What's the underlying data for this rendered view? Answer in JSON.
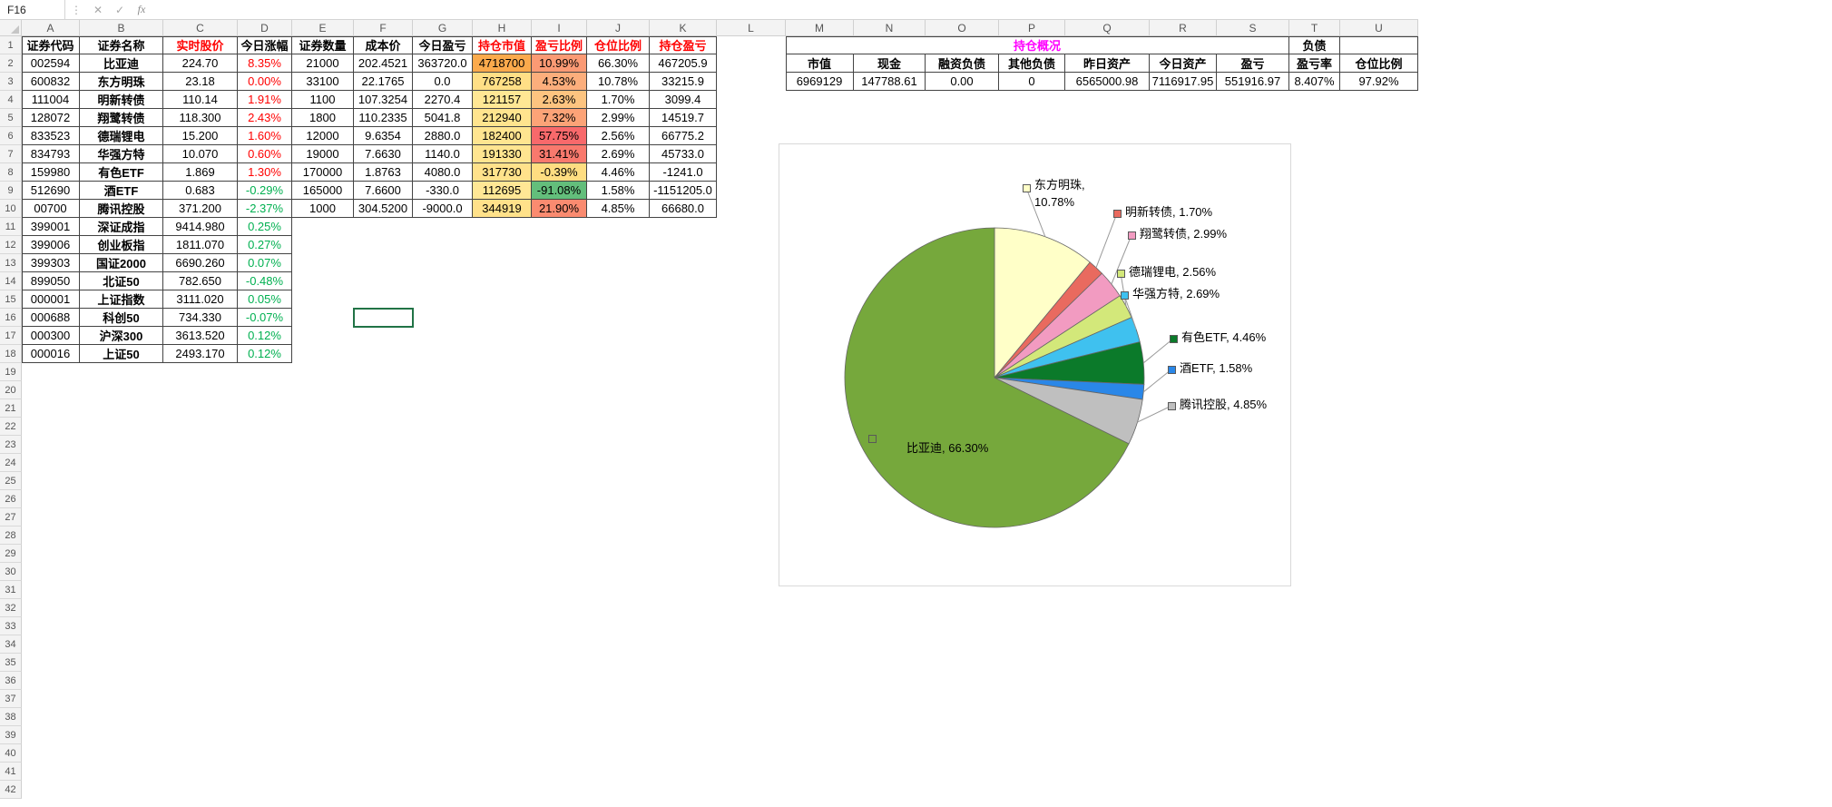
{
  "formula_bar": {
    "name_box": "F16",
    "menu_dots": "⋮",
    "cancel": "✕",
    "enter": "✓",
    "fx": "fx",
    "formula": ""
  },
  "sheet": {
    "columns": [
      "A",
      "B",
      "C",
      "D",
      "E",
      "F",
      "G",
      "H",
      "I",
      "J",
      "K",
      "L",
      "M",
      "N",
      "O",
      "P",
      "Q",
      "R",
      "S",
      "T",
      "U"
    ],
    "row_count": 42,
    "active_cell": "F16"
  },
  "holdings_table": {
    "headers": [
      {
        "label": "证券代码",
        "color": "#000000"
      },
      {
        "label": "证券名称",
        "color": "#000000"
      },
      {
        "label": "实时股价",
        "color": "#ff0000"
      },
      {
        "label": "今日涨幅",
        "color": "#000000"
      },
      {
        "label": "证券数量",
        "color": "#000000"
      },
      {
        "label": "成本价",
        "color": "#000000"
      },
      {
        "label": "今日盈亏",
        "color": "#000000"
      },
      {
        "label": "持仓市值",
        "color": "#ff0000"
      },
      {
        "label": "盈亏比例",
        "color": "#ff0000"
      },
      {
        "label": "仓位比例",
        "color": "#ff0000"
      },
      {
        "label": "持仓盈亏",
        "color": "#ff0000"
      }
    ],
    "rows": [
      {
        "code": "002594",
        "name": "比亚迪",
        "price": "224.70",
        "change": "8.35%",
        "change_color": "#ff0000",
        "qty": "21000",
        "cost": "202.4521",
        "today_pl": "363720.0",
        "mkt_value": "4718700",
        "mkt_value_bg": "#fbaa4c",
        "pl_ratio": "10.99%",
        "pl_ratio_bg": "#fb9a74",
        "pos_ratio": "66.30%",
        "pos_pl": "467205.9"
      },
      {
        "code": "600832",
        "name": "东方明珠",
        "price": "23.18",
        "change": "0.00%",
        "change_color": "#ff0000",
        "qty": "33100",
        "cost": "22.1765",
        "today_pl": "0.0",
        "mkt_value": "767258",
        "mkt_value_bg": "#ffdf86",
        "pl_ratio": "4.53%",
        "pl_ratio_bg": "#fcae7c",
        "pos_ratio": "10.78%",
        "pos_pl": "33215.9"
      },
      {
        "code": "111004",
        "name": "明新转债",
        "price": "110.14",
        "change": "1.91%",
        "change_color": "#ff0000",
        "qty": "1100",
        "cost": "107.3254",
        "today_pl": "2270.4",
        "mkt_value": "121157",
        "mkt_value_bg": "#ffe794",
        "pl_ratio": "2.63%",
        "pl_ratio_bg": "#fdc480",
        "pos_ratio": "1.70%",
        "pos_pl": "3099.4"
      },
      {
        "code": "128072",
        "name": "翔鹭转债",
        "price": "118.300",
        "change": "2.43%",
        "change_color": "#ff0000",
        "qty": "1800",
        "cost": "110.2335",
        "today_pl": "5041.8",
        "mkt_value": "212940",
        "mkt_value_bg": "#ffe48e",
        "pl_ratio": "7.32%",
        "pl_ratio_bg": "#fca377",
        "pos_ratio": "2.99%",
        "pos_pl": "14519.7"
      },
      {
        "code": "833523",
        "name": "德瑞锂电",
        "price": "15.200",
        "change": "1.60%",
        "change_color": "#ff0000",
        "qty": "12000",
        "cost": "9.6354",
        "today_pl": "2880.0",
        "mkt_value": "182400",
        "mkt_value_bg": "#ffe590",
        "pl_ratio": "57.75%",
        "pl_ratio_bg": "#f8696b",
        "pos_ratio": "2.56%",
        "pos_pl": "66775.2"
      },
      {
        "code": "834793",
        "name": "华强方特",
        "price": "10.070",
        "change": "0.60%",
        "change_color": "#ff0000",
        "qty": "19000",
        "cost": "7.6630",
        "today_pl": "1140.0",
        "mkt_value": "191330",
        "mkt_value_bg": "#ffe590",
        "pl_ratio": "31.41%",
        "pl_ratio_bg": "#f9796d",
        "pos_ratio": "2.69%",
        "pos_pl": "45733.0"
      },
      {
        "code": "159980",
        "name": "有色ETF",
        "price": "1.869",
        "change": "1.30%",
        "change_color": "#ff0000",
        "qty": "170000",
        "cost": "1.8763",
        "today_pl": "4080.0",
        "mkt_value": "317730",
        "mkt_value_bg": "#ffe28b",
        "pl_ratio": "-0.39%",
        "pl_ratio_bg": "#fedd81",
        "pos_ratio": "4.46%",
        "pos_pl": "-1241.0"
      },
      {
        "code": "512690",
        "name": "酒ETF",
        "price": "0.683",
        "change": "-0.29%",
        "change_color": "#00b050",
        "qty": "165000",
        "cost": "7.6600",
        "today_pl": "-330.0",
        "mkt_value": "112695",
        "mkt_value_bg": "#ffe795",
        "pl_ratio": "-91.08%",
        "pl_ratio_bg": "#63be7b",
        "pos_ratio": "1.58%",
        "pos_pl": "-1151205.0"
      },
      {
        "code": "00700",
        "name": "腾讯控股",
        "price": "371.200",
        "change": "-2.37%",
        "change_color": "#00b050",
        "qty": "1000",
        "cost": "304.5200",
        "today_pl": "-9000.0",
        "mkt_value": "344919",
        "mkt_value_bg": "#ffe18a",
        "pl_ratio": "21.90%",
        "pl_ratio_bg": "#fa8b70",
        "pos_ratio": "4.85%",
        "pos_pl": "66680.0"
      }
    ]
  },
  "index_table": {
    "rows": [
      {
        "code": "399001",
        "name": "深证成指",
        "price": "9414.980",
        "change": "0.25%",
        "change_color": "#00b050"
      },
      {
        "code": "399006",
        "name": "创业板指",
        "price": "1811.070",
        "change": "0.27%",
        "change_color": "#00b050"
      },
      {
        "code": "399303",
        "name": "国证2000",
        "price": "6690.260",
        "change": "0.07%",
        "change_color": "#00b050"
      },
      {
        "code": "899050",
        "name": "北证50",
        "price": "782.650",
        "change": "-0.48%",
        "change_color": "#00b050"
      },
      {
        "code": "000001",
        "name": "上证指数",
        "price": "3111.020",
        "change": "0.05%",
        "change_color": "#00b050"
      },
      {
        "code": "000688",
        "name": "科创50",
        "price": "734.330",
        "change": "-0.07%",
        "change_color": "#00b050"
      },
      {
        "code": "000300",
        "name": "沪深300",
        "price": "3613.520",
        "change": "0.12%",
        "change_color": "#00b050"
      },
      {
        "code": "000016",
        "name": "上证50",
        "price": "2493.170",
        "change": "0.12%",
        "change_color": "#00b050"
      }
    ]
  },
  "summary_table": {
    "title": "持仓概况",
    "title_color": "#ff00ff",
    "debt_header": "负债",
    "col_headers": [
      "市值",
      "现金",
      "融资负债",
      "其他负债",
      "昨日资产",
      "今日资产",
      "盈亏",
      "盈亏率",
      "仓位比例"
    ],
    "values": [
      "6969129",
      "147788.61",
      "0.00",
      "0",
      "6565000.98",
      "7116917.95",
      "551916.97",
      "8.407%",
      "97.92%"
    ]
  },
  "chart_data": {
    "type": "pie",
    "title": "",
    "legend_position": "none",
    "has_leader_lines": true,
    "labels": [
      "东方明珠",
      "明新转债",
      "翔鹭转债",
      "德瑞锂电",
      "华强方特",
      "有色ETF",
      "酒ETF",
      "腾讯控股",
      "比亚迪"
    ],
    "values": [
      10.78,
      1.7,
      2.99,
      2.56,
      2.69,
      4.46,
      1.58,
      4.85,
      66.3
    ],
    "colors": [
      "#ffffc8",
      "#e96a5f",
      "#f29bc1",
      "#d3e87a",
      "#3fc1ef",
      "#0b7a2a",
      "#2a87e8",
      "#bfbfbf",
      "#76a83c"
    ],
    "label_texts": [
      "东方明珠, 10.78%",
      "明新转债, 1.70%",
      "翔鹭转债, 2.99%",
      "德瑞锂电, 2.56%",
      "华强方特, 2.69%",
      "有色ETF, 4.46%",
      "酒ETF, 1.58%",
      "腾讯控股, 4.85%",
      "比亚迪, 66.30%"
    ]
  }
}
